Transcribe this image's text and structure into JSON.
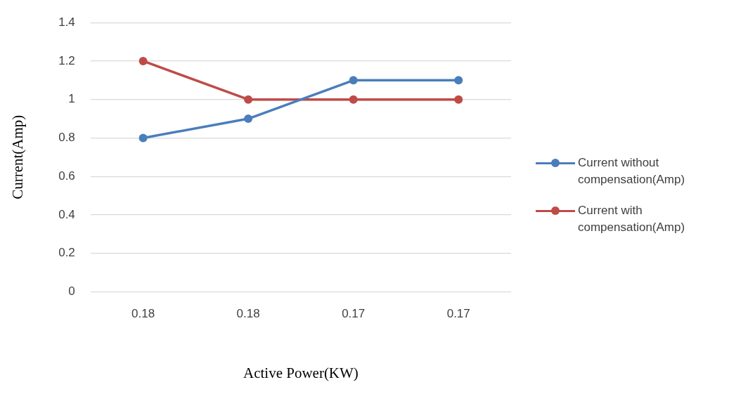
{
  "chart_data": {
    "type": "line",
    "xlabel": "Active Power(KW)",
    "ylabel": "Current(Amp)",
    "categories": [
      "0.18",
      "0.18",
      "0.17",
      "0.17"
    ],
    "series": [
      {
        "name": "Current without compensation(Amp)",
        "color": "#4a7ebb",
        "values": [
          0.8,
          0.9,
          1.1,
          1.1
        ]
      },
      {
        "name": "Current with compensation(Amp)",
        "color": "#be4b48",
        "values": [
          1.2,
          1.0,
          1.0,
          1.0
        ]
      }
    ],
    "ylim": [
      0,
      1.4
    ],
    "yticks": [
      0,
      0.2,
      0.4,
      0.6,
      0.8,
      1,
      1.2,
      1.4
    ],
    "grid": "y",
    "legend": "right",
    "marker": "circle",
    "line_style": "solid"
  }
}
